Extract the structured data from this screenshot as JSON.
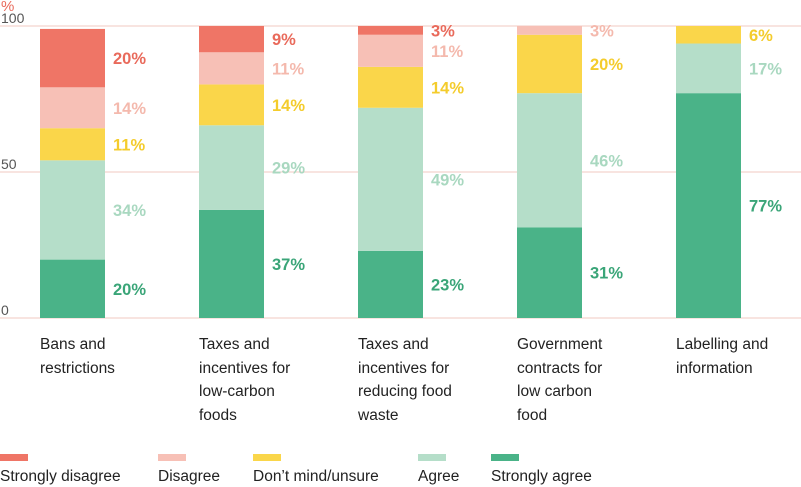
{
  "chart_data": {
    "type": "bar",
    "stacked": true,
    "yunit": "%",
    "ylim": [
      0,
      100
    ],
    "yticks": [
      0,
      50,
      100
    ],
    "categories": [
      "Bans and\nrestrictions",
      "Taxes and\nincentives for\nlow-carbon\nfoods",
      "Taxes and\nincentives for\nreducing food\nwaste",
      "Government\ncontracts for\nlow carbon\nfood",
      "Labelling and\ninformation"
    ],
    "series": [
      {
        "name": "Strongly agree",
        "color": "#4ab388",
        "labelColor": "#3aa578",
        "values": [
          20,
          37,
          23,
          31,
          77
        ],
        "labels": [
          "20%",
          "37%",
          "23%",
          "31%",
          "77%"
        ]
      },
      {
        "name": "Agree",
        "color": "#b5dec9",
        "labelColor": "#a9d8c0",
        "values": [
          34,
          29,
          49,
          46,
          17
        ],
        "labels": [
          "34%",
          "29%",
          "49%",
          "46%",
          "17%"
        ]
      },
      {
        "name": "Don’t mind/unsure",
        "color": "#fad64a",
        "labelColor": "#f4cc2c",
        "values": [
          11,
          14,
          14,
          20,
          6
        ],
        "labels": [
          "11%",
          "14%",
          "14%",
          "20%",
          "6%"
        ]
      },
      {
        "name": "Disagree",
        "color": "#f7c0b6",
        "labelColor": "#f4b9ad",
        "values": [
          14,
          11,
          11,
          3,
          0
        ],
        "labels": [
          "14%",
          "11%",
          "11%",
          "3%",
          ""
        ]
      },
      {
        "name": "Strongly disagree",
        "color": "#ef7566",
        "labelColor": "#e96a5b",
        "values": [
          20,
          9,
          3,
          0,
          0
        ],
        "labels": [
          "20%",
          "9%",
          "3%",
          "",
          ""
        ]
      }
    ],
    "legend": [
      "Strongly disagree",
      "Disagree",
      "Don’t mind/unsure",
      "Agree",
      "Strongly agree"
    ],
    "legend_position": "bottom",
    "gridline_color": "#f0c9c2"
  }
}
